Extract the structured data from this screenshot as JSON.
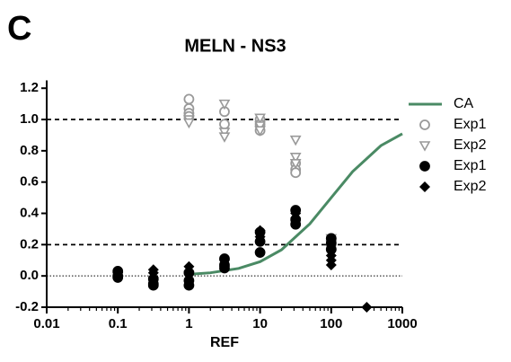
{
  "panel_label": "C",
  "chart_data": {
    "type": "scatter",
    "title": "MELN - NS3",
    "x_label": "REF",
    "x_log": true,
    "xlim": [
      0.01,
      1000
    ],
    "xticks": [
      0.01,
      0.1,
      1,
      10,
      100,
      1000
    ],
    "ylim": [
      -0.2,
      1.25
    ],
    "yticks": [
      -0.2,
      {
        "value": 0,
        "label": "0.0"
      },
      0.2,
      0.4,
      0.6,
      0.8,
      {
        "value": 1,
        "label": "1.0"
      },
      1.2
    ],
    "reference_lines": [
      {
        "y": 1,
        "style": "dashed"
      },
      {
        "y": 0.2,
        "style": "dashed"
      },
      {
        "y": 0,
        "style": "dotted"
      }
    ],
    "legend": "right",
    "series": [
      {
        "name": "CA",
        "color": "#4a8a64",
        "marker": "line",
        "x": [
          1,
          2,
          5,
          10,
          20,
          50,
          100,
          200,
          500,
          1000
        ],
        "values": [
          0.01,
          0.02,
          0.048,
          0.091,
          0.167,
          0.333,
          0.5,
          0.667,
          0.833,
          0.909
        ]
      },
      {
        "name": "Exp1",
        "color": "#999999",
        "marker": "open-circle",
        "x": [
          1,
          1,
          1,
          1,
          3.16,
          3.16,
          10,
          10,
          10,
          31.6,
          31.6,
          31.6,
          100,
          100,
          100
        ],
        "values": [
          1.13,
          1.07,
          1.04,
          1.02,
          1.05,
          0.97,
          1.0,
          0.97,
          0.93,
          0.72,
          0.68,
          0.66,
          0.24,
          0.2,
          0.17
        ]
      },
      {
        "name": "Exp2",
        "color": "#999999",
        "marker": "open-triangle-down",
        "x": [
          1,
          1,
          3.16,
          3.16,
          3.16,
          10,
          10,
          10,
          31.6,
          31.6,
          31.6,
          100,
          100
        ],
        "values": [
          1.0,
          0.98,
          1.1,
          0.92,
          0.89,
          1.01,
          0.96,
          0.93,
          0.87,
          0.76,
          0.72,
          0.24,
          0.2
        ]
      },
      {
        "name": "Exp1",
        "color": "#000000",
        "marker": "circle",
        "x": [
          0.1,
          0.1,
          0.1,
          0.316,
          0.316,
          0.316,
          1,
          1,
          1,
          3.16,
          3.16,
          3.16,
          10,
          10,
          10,
          31.6,
          31.6,
          31.6,
          100,
          100,
          100
        ],
        "values": [
          0.03,
          0.0,
          -0.01,
          -0.02,
          -0.05,
          -0.06,
          0.02,
          -0.03,
          -0.06,
          0.11,
          0.07,
          0.05,
          0.28,
          0.22,
          0.15,
          0.42,
          0.36,
          0.33,
          0.24,
          0.21,
          0.17
        ]
      },
      {
        "name": "Exp2",
        "color": "#000000",
        "marker": "diamond",
        "x": [
          0.1,
          0.1,
          0.316,
          0.316,
          0.316,
          1,
          1,
          3.16,
          3.16,
          10,
          10,
          31.6,
          31.6,
          100,
          100,
          100,
          316
        ],
        "values": [
          0.02,
          0.0,
          0.04,
          0.02,
          -0.01,
          0.06,
          0.03,
          0.1,
          0.06,
          0.29,
          0.25,
          0.4,
          0.37,
          0.13,
          0.1,
          0.07,
          -0.2
        ]
      }
    ]
  }
}
